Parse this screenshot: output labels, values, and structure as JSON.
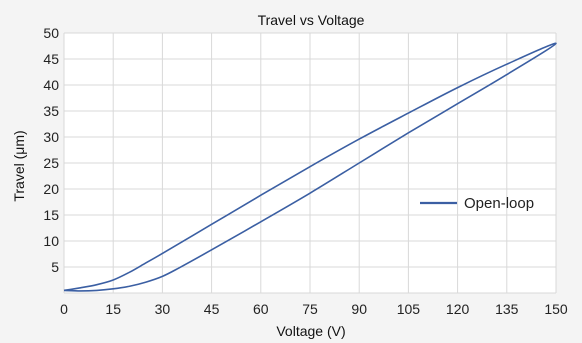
{
  "chart_data": {
    "type": "line",
    "title": "Travel vs Voltage",
    "xlabel": "Voltage (V)",
    "ylabel": "Travel (μm)",
    "xlim": [
      0,
      150
    ],
    "ylim": [
      0,
      50
    ],
    "x_ticks": [
      0,
      15,
      30,
      45,
      60,
      75,
      90,
      105,
      120,
      135,
      150
    ],
    "y_ticks": [
      5,
      10,
      15,
      20,
      25,
      30,
      35,
      40,
      45,
      50
    ],
    "grid": true,
    "legend_position": "right",
    "series": [
      {
        "name": "Open-loop",
        "color": "#3b5fa3",
        "points": [
          [
            0,
            0.5
          ],
          [
            5,
            1.0
          ],
          [
            10,
            1.6
          ],
          [
            15,
            2.5
          ],
          [
            20,
            4.0
          ],
          [
            25,
            5.8
          ],
          [
            30,
            7.6
          ],
          [
            45,
            13.2
          ],
          [
            60,
            18.8
          ],
          [
            75,
            24.3
          ],
          [
            90,
            29.6
          ],
          [
            105,
            34.6
          ],
          [
            120,
            39.5
          ],
          [
            135,
            44.0
          ],
          [
            150,
            48.0
          ],
          [
            135,
            42.0
          ],
          [
            120,
            36.4
          ],
          [
            105,
            30.8
          ],
          [
            90,
            25.0
          ],
          [
            75,
            19.2
          ],
          [
            60,
            13.7
          ],
          [
            45,
            8.3
          ],
          [
            35,
            4.8
          ],
          [
            30,
            3.2
          ],
          [
            25,
            2.1
          ],
          [
            20,
            1.3
          ],
          [
            15,
            0.8
          ],
          [
            10,
            0.5
          ],
          [
            5,
            0.4
          ],
          [
            0,
            0.5
          ]
        ]
      }
    ]
  }
}
